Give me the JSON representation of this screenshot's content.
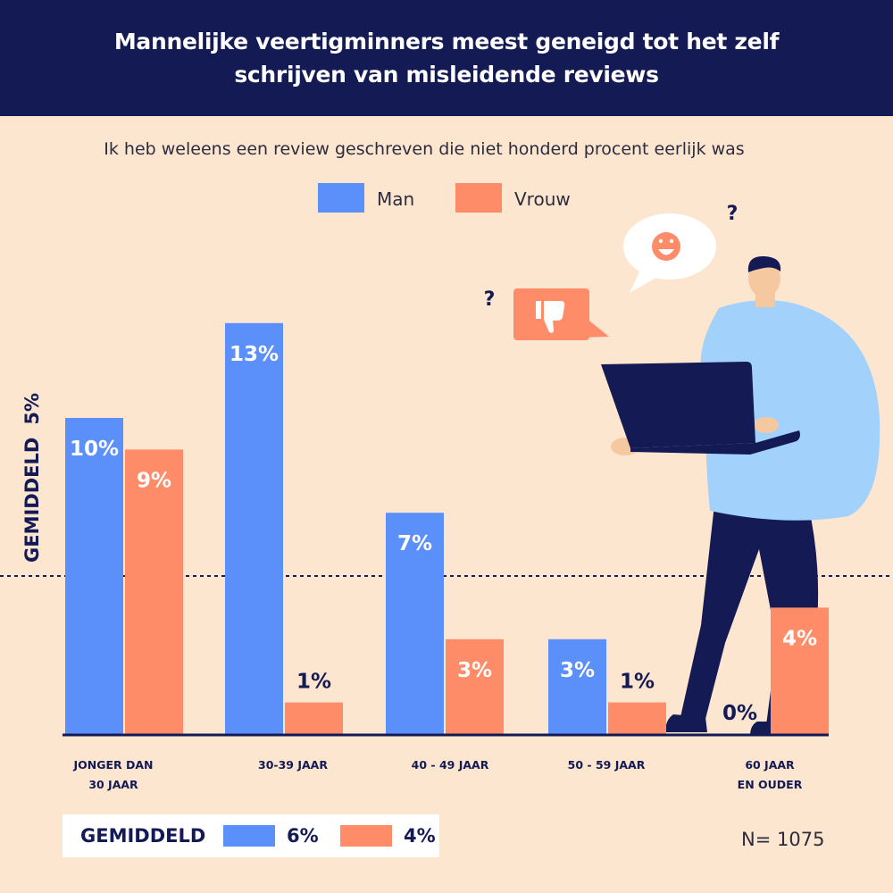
{
  "header": {
    "title": "Mannelijke veertigminners meest geneigd tot het zelf schrijven van misleidende reviews"
  },
  "colors": {
    "man": "#5b8ff9",
    "vrouw": "#ff8c69",
    "navy": "#131a54",
    "background": "#fde6d0"
  },
  "legend": {
    "man_label": "Man",
    "vrouw_label": "Vrouw"
  },
  "average_axis": {
    "label": "GEMIDDELD",
    "value_label": "5%"
  },
  "footer": {
    "label": "GEMIDDELD",
    "man_avg": "6%",
    "vrouw_avg": "4%",
    "n": "N= 1075"
  },
  "chart_data": {
    "type": "bar",
    "title": "",
    "subtitle": "Ik heb weleens een review geschreven die niet honderd procent eerlijk was",
    "categories": [
      "JONGER DAN\n30 JAAR",
      "30-39 JAAR",
      "40 - 49 JAAR",
      "50 - 59 JAAR",
      "60 JAAR\nEN  OUDER"
    ],
    "series": [
      {
        "name": "Man",
        "values": [
          10,
          13,
          7,
          3,
          0
        ],
        "labels": [
          "10%",
          "13%",
          "7%",
          "3%",
          "0%"
        ]
      },
      {
        "name": "Vrouw",
        "values": [
          9,
          1,
          3,
          1,
          4
        ],
        "labels": [
          "9%",
          "1%",
          "3%",
          "1%",
          "4%"
        ]
      }
    ],
    "average_line": 5,
    "ylim": [
      0,
      13
    ],
    "grid": false,
    "legend_position": "top"
  }
}
